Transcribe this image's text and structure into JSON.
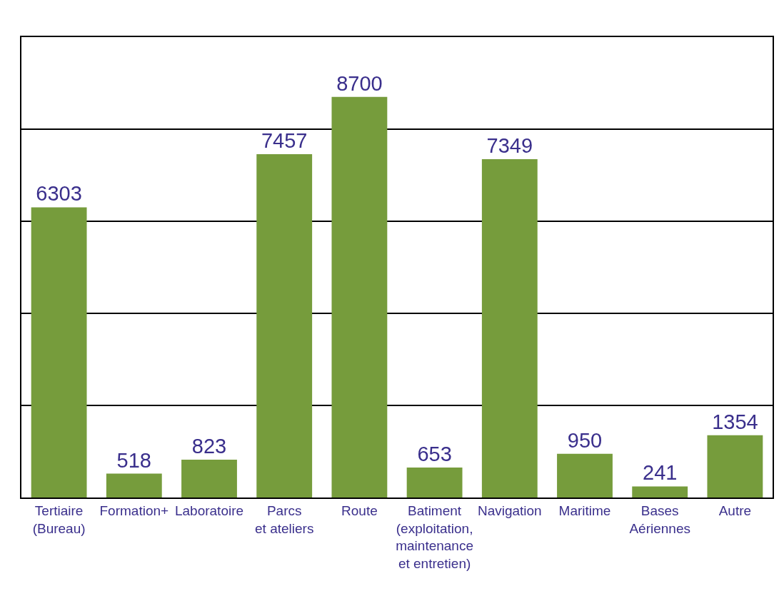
{
  "chart_data": {
    "type": "bar",
    "categories": [
      "Tertiaire\n(Bureau)",
      "Formation+",
      "Laboratoire",
      "Parcs\net ateliers",
      "Route",
      "Batiment\n(exploitation,\nmaintenance\net entretien)",
      "Navigation",
      "Maritime",
      "Bases\nAériennes",
      "Autre"
    ],
    "values": [
      6303,
      518,
      823,
      7457,
      8700,
      653,
      7349,
      950,
      241,
      1354
    ],
    "color": "#769c3c",
    "data_labels": true,
    "ylim": [
      0,
      10000
    ],
    "yticks": [
      {
        "value": 0,
        "label": null
      },
      {
        "value": 2000,
        "label": null
      },
      {
        "value": 4000,
        "label": null
      },
      {
        "value": 6000,
        "label": null
      },
      {
        "value": 8000,
        "label": null
      },
      {
        "value": 10000,
        "label": null
      }
    ],
    "tick_labels": "x",
    "grid": "y",
    "legend": false
  }
}
